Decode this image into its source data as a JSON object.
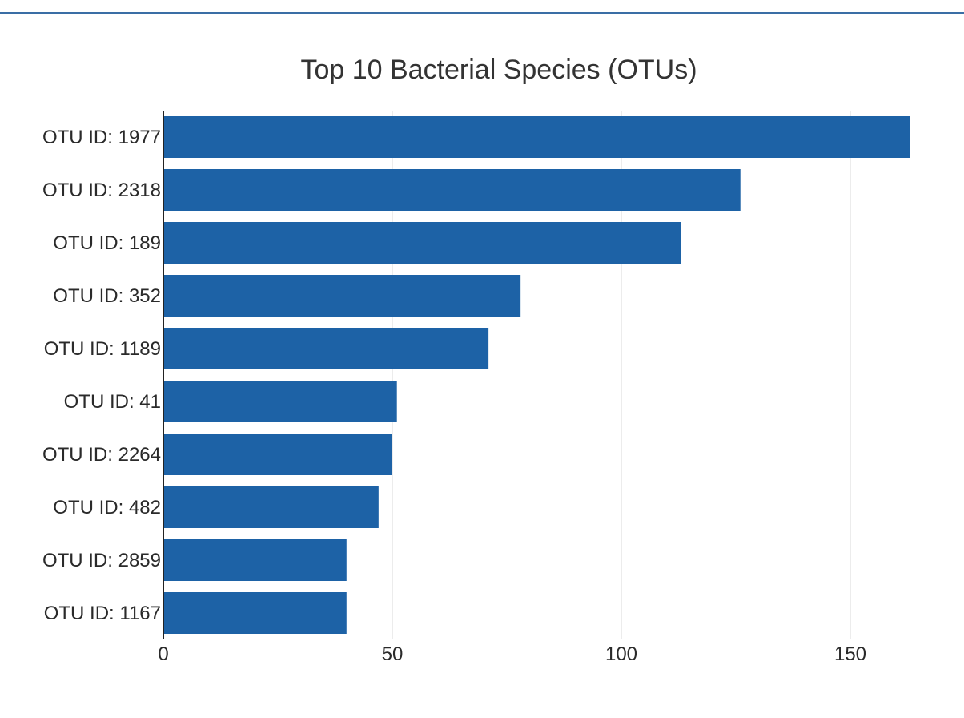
{
  "colors": {
    "bar": "#1d62a6",
    "top_rule": "#3a6ea5",
    "grid": "#e6e6e6",
    "text": "#2a2a2a"
  },
  "chart_data": {
    "type": "bar",
    "orientation": "horizontal",
    "title": "Top 10 Bacterial Species (OTUs)",
    "xlabel": "",
    "ylabel": "",
    "categories": [
      "OTU ID: 1977",
      "OTU ID: 2318",
      "OTU ID: 189",
      "OTU ID: 352",
      "OTU ID: 1189",
      "OTU ID: 41",
      "OTU ID: 2264",
      "OTU ID: 482",
      "OTU ID: 2859",
      "OTU ID: 1167"
    ],
    "values": [
      163,
      126,
      113,
      78,
      71,
      51,
      50,
      47,
      40,
      40
    ],
    "xlim": [
      0,
      170
    ],
    "x_ticks": [
      0,
      50,
      100,
      150
    ],
    "grid": true,
    "legend": "none"
  }
}
